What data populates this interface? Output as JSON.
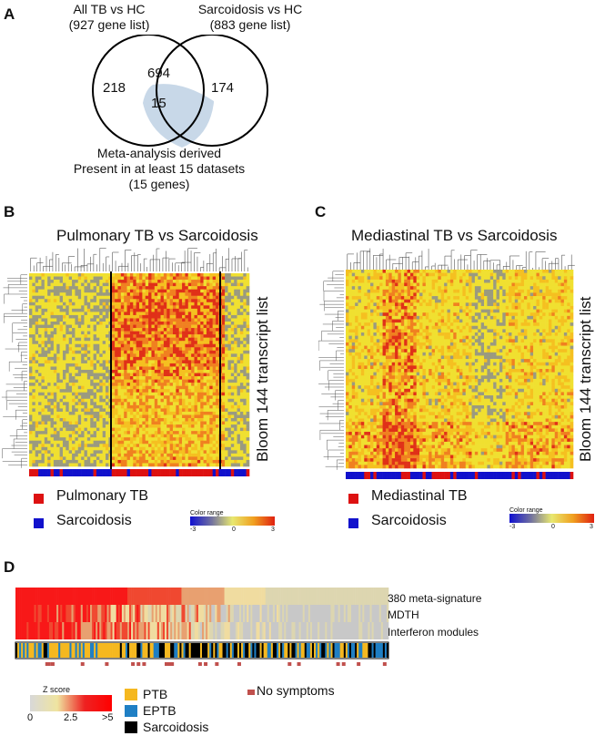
{
  "panel_a": {
    "label": "A",
    "left_set_title": "All TB vs HC",
    "left_set_sub": "(927 gene list)",
    "right_set_title": "Sarcoidosis vs HC",
    "right_set_sub": "(883 gene list)",
    "left_only": "218",
    "overlap": "694",
    "core": "15",
    "right_only": "174",
    "caption_1": "Meta-analysis derived",
    "caption_2": "Present in at least 15 datasets",
    "caption_3": "(15 genes)"
  },
  "panel_b": {
    "label": "B",
    "title": "Pulmonary TB vs Sarcoidosis",
    "side_label": "Bloom 144 transcript list",
    "legend_1": "Pulmonary TB",
    "legend_2": "Sarcoidosis",
    "color_range_title": "Color range",
    "scale_min": "-3",
    "scale_mid": "0",
    "scale_max": "3"
  },
  "panel_c": {
    "label": "C",
    "title": "Mediastinal TB vs Sarcoidosis",
    "side_label": "Bloom 144 transcript list",
    "legend_1": "Mediastinal TB",
    "legend_2": "Sarcoidosis",
    "color_range_title": "Color range",
    "scale_min": "-3",
    "scale_mid": "0",
    "scale_max": "3"
  },
  "panel_d": {
    "label": "D",
    "row_1": "380 meta-signature",
    "row_2": "MDTH",
    "row_3": "Interferon modules",
    "zscore_title": "Z score",
    "z_min": "0",
    "z_mid": "2.5",
    "z_max": ">5",
    "legend_ptb": "PTB",
    "legend_eptb": "EPTB",
    "legend_sarc": "Sarcoidosis",
    "legend_nosym": "No symptoms"
  },
  "colors": {
    "tb_red": "#dd1111",
    "sarc_blue": "#1111cc",
    "ptb": "#f5b820",
    "eptb": "#1f7fc4",
    "sarcoidosis": "#000000",
    "no_symptoms": "#c0504d",
    "venn_core": "#c8d8e8"
  }
}
